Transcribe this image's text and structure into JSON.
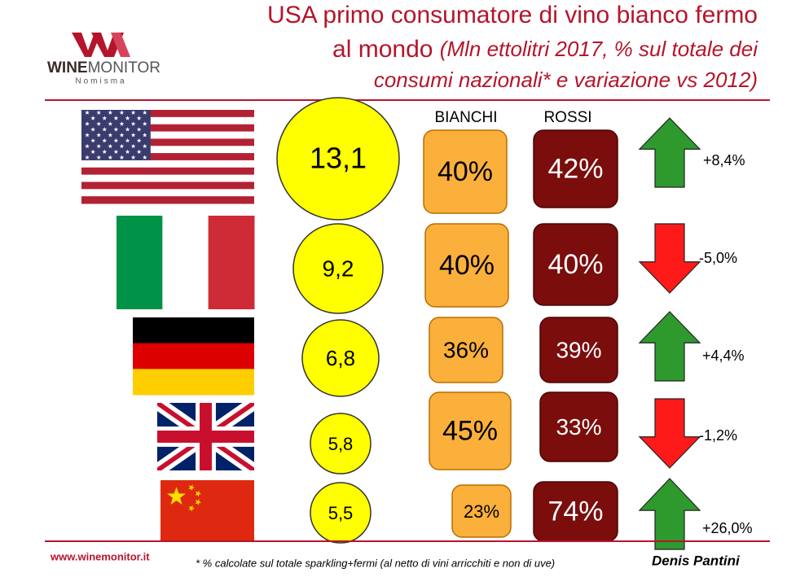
{
  "header": {
    "title_line1": "USA primo consumatore di vino bianco fermo",
    "title_line2": "al mondo",
    "title_line2_italic": "(Mln ettolitri 2017, % sul totale dei",
    "title_line3_italic": "consumi nazionali* e variazione vs 2012)"
  },
  "logo": {
    "brand_a": "WINE",
    "brand_b": "MONITOR",
    "sub": "Nomisma"
  },
  "columns": {
    "bianchi": "BIANCHI",
    "rossi": "ROSSI"
  },
  "rows": [
    {
      "volume": "13,1",
      "bianchi": "40%",
      "rossi": "42%",
      "change": "+8,4%"
    },
    {
      "volume": "9,2",
      "bianchi": "40%",
      "rossi": "40%",
      "change": "-5,0%"
    },
    {
      "volume": "6,8",
      "bianchi": "36%",
      "rossi": "39%",
      "change": "+4,4%"
    },
    {
      "volume": "5,8",
      "bianchi": "45%",
      "rossi": "33%",
      "change": "-1,2%"
    },
    {
      "volume": "5,5",
      "bianchi": "23%",
      "rossi": "74%",
      "change": "+26,0%"
    }
  ],
  "footer": {
    "site": "www.winemonitor.it",
    "note": "* % calcolate sul totale sparkling+fermi (al netto di vini arricchiti e non di uve)",
    "author": "Denis Pantini"
  }
}
